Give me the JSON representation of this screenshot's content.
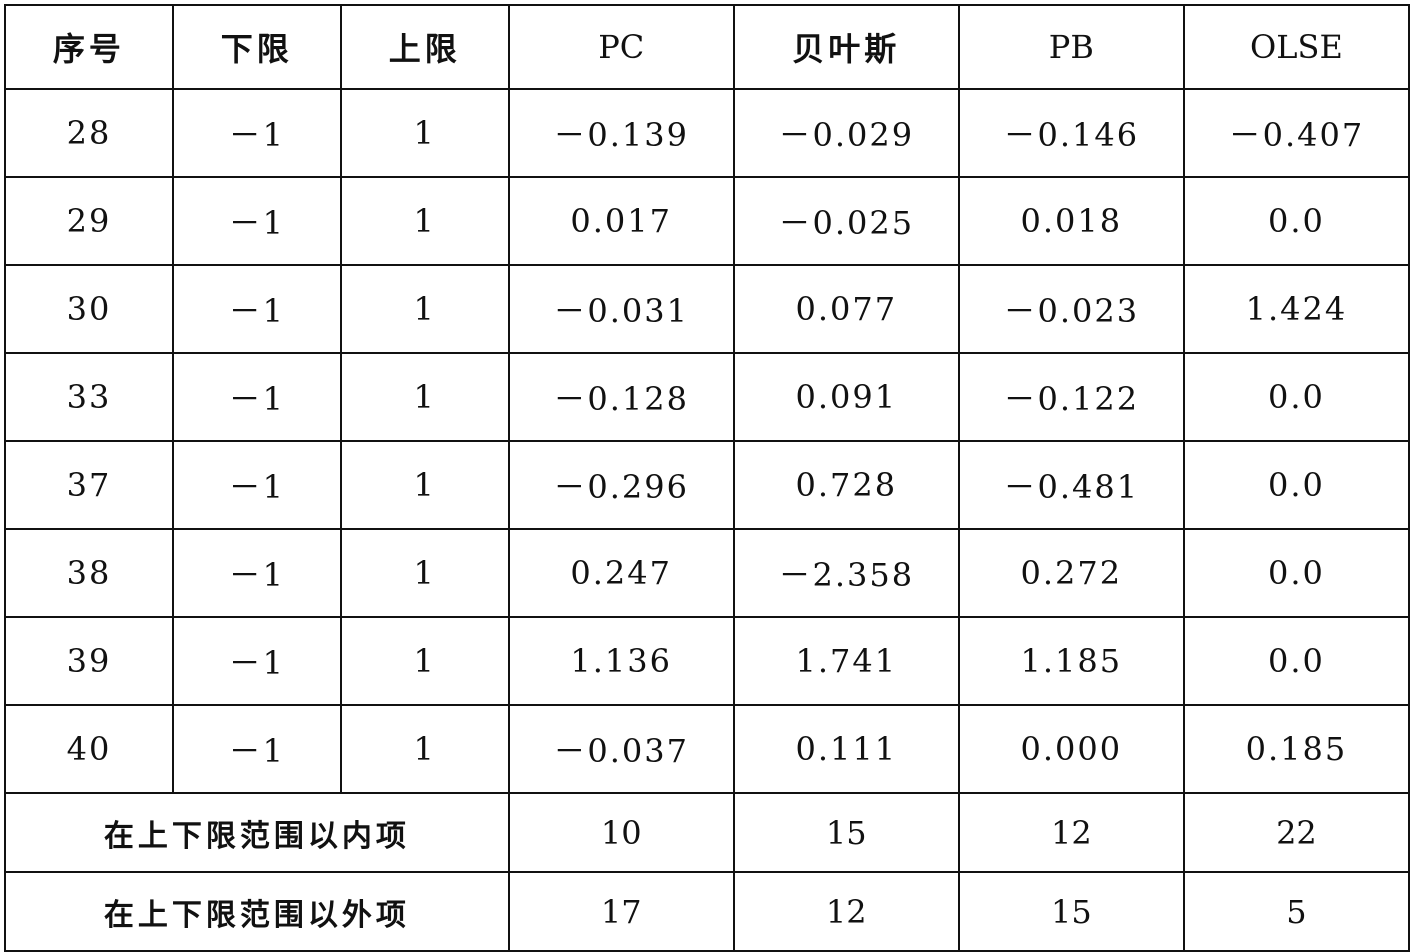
{
  "table": {
    "headers": [
      "序号",
      "下限",
      "上限",
      "PC",
      "贝叶斯",
      "PB",
      "OLSE"
    ],
    "rows": [
      [
        "28",
        "－1",
        "1",
        "－0.139",
        "－0.029",
        "－0.146",
        "－0.407"
      ],
      [
        "29",
        "－1",
        "1",
        "0.017",
        "－0.025",
        "0.018",
        "0.0"
      ],
      [
        "30",
        "－1",
        "1",
        "－0.031",
        "0.077",
        "－0.023",
        "1.424"
      ],
      [
        "33",
        "－1",
        "1",
        "－0.128",
        "0.091",
        "－0.122",
        "0.0"
      ],
      [
        "37",
        "－1",
        "1",
        "－0.296",
        "0.728",
        "－0.481",
        "0.0"
      ],
      [
        "38",
        "－1",
        "1",
        "0.247",
        "－2.358",
        "0.272",
        "0.0"
      ],
      [
        "39",
        "－1",
        "1",
        "1.136",
        "1.741",
        "1.185",
        "0.0"
      ],
      [
        "40",
        "－1",
        "1",
        "－0.037",
        "0.111",
        "0.000",
        "0.185"
      ]
    ],
    "summary": [
      {
        "label": "在上下限范围以内项",
        "values": [
          "10",
          "15",
          "12",
          "22"
        ]
      },
      {
        "label": "在上下限范围以外项",
        "values": [
          "17",
          "12",
          "15",
          "5"
        ]
      }
    ]
  }
}
